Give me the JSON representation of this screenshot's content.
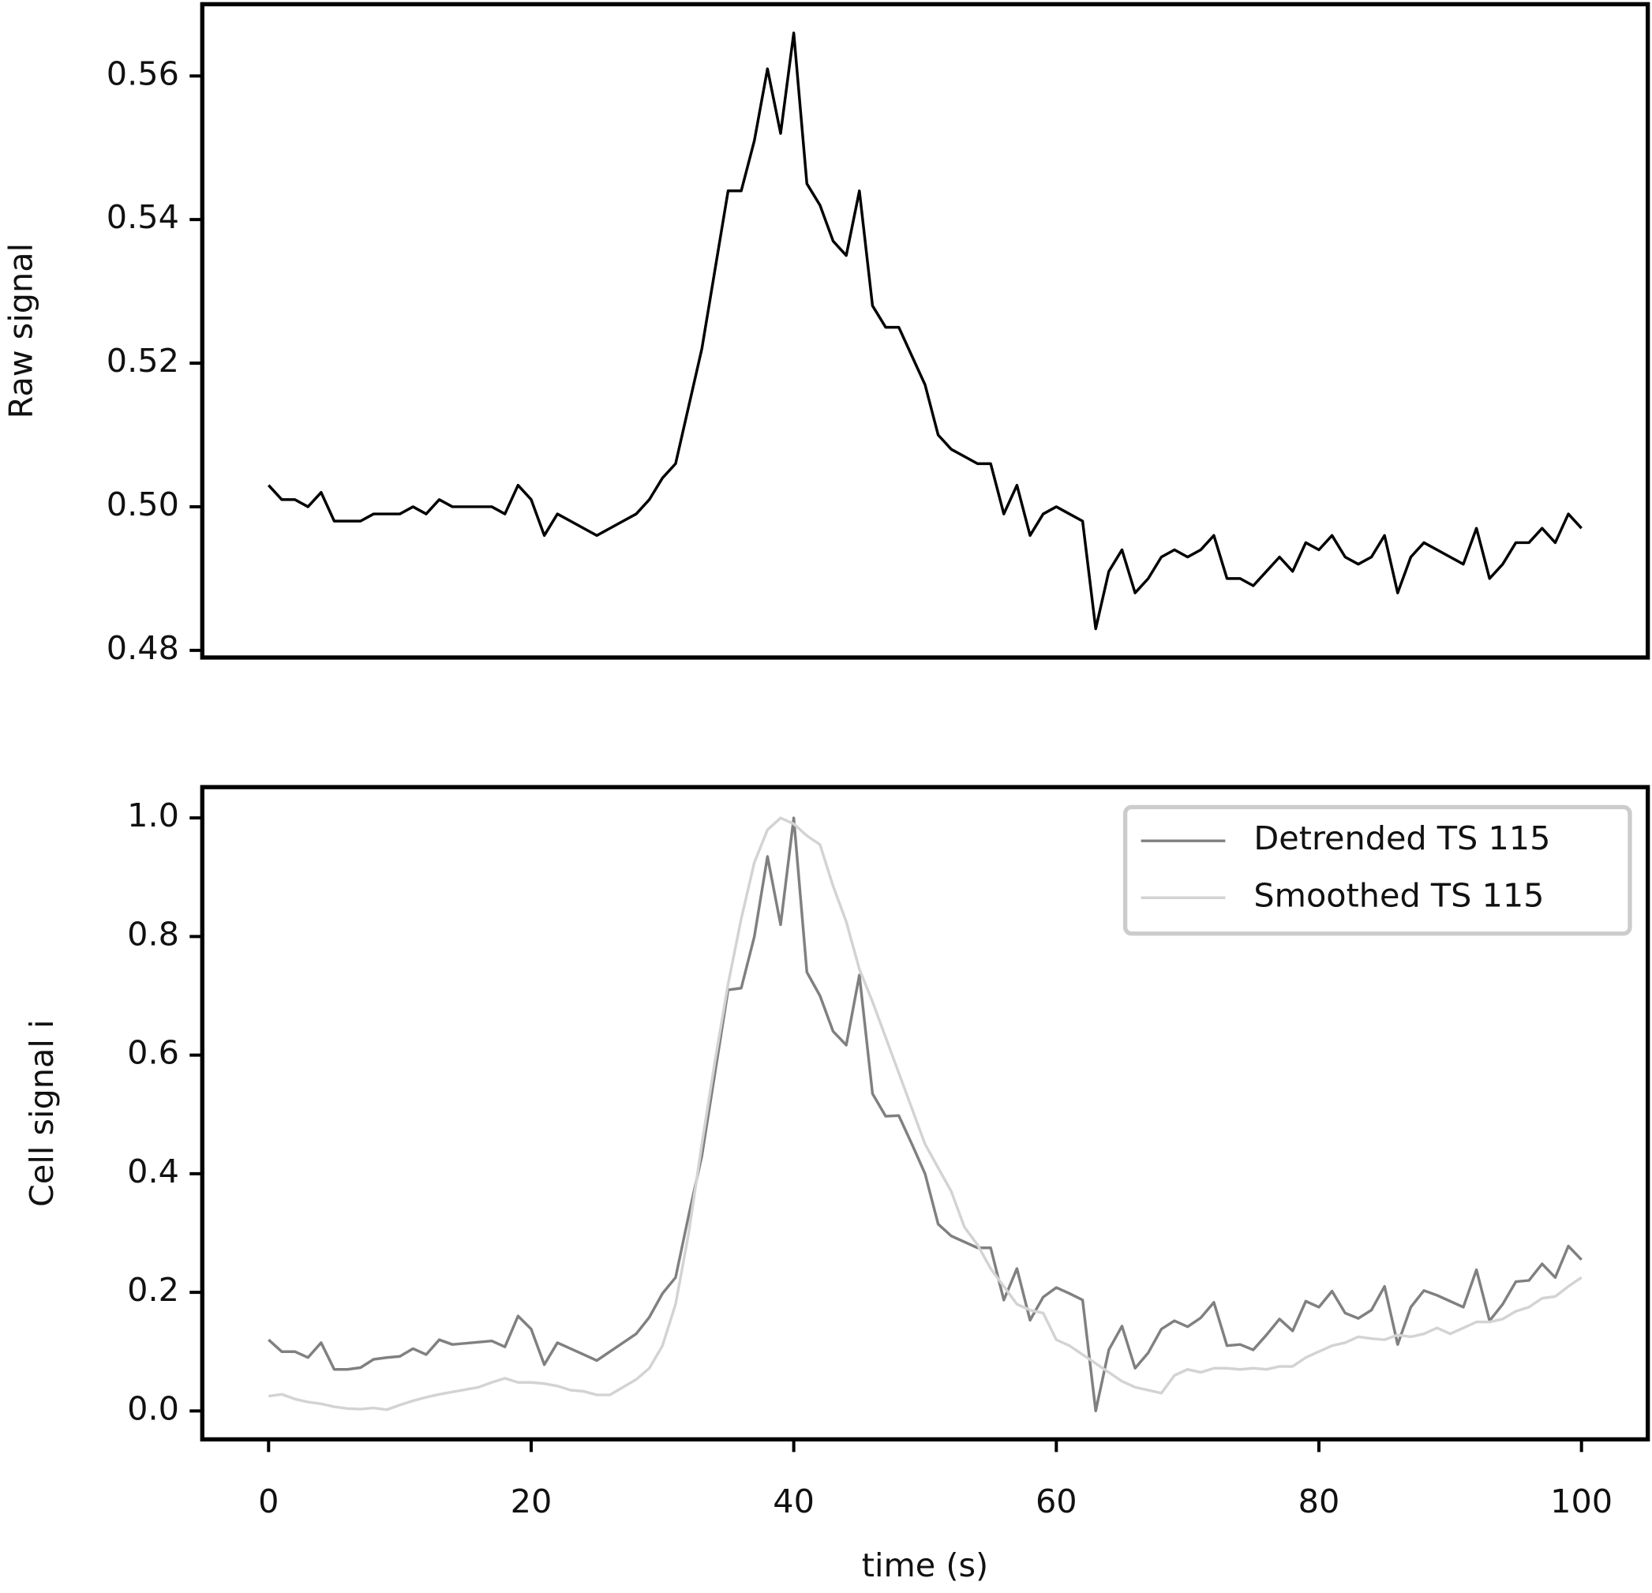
{
  "chart_data": [
    {
      "type": "line",
      "ylabel": "Raw signal",
      "color": "#000000",
      "x": [
        0,
        1,
        2,
        3,
        4,
        5,
        6,
        7,
        8,
        9,
        10,
        11,
        12,
        13,
        14,
        15,
        16,
        17,
        18,
        19,
        20,
        21,
        22,
        23,
        24,
        25,
        26,
        27,
        28,
        29,
        30,
        31,
        32,
        33,
        34,
        35,
        36,
        37,
        38,
        39,
        40,
        41,
        42,
        43,
        44,
        45,
        46,
        47,
        48,
        49,
        50,
        51,
        52,
        53,
        54,
        55,
        56,
        57,
        58,
        59,
        60,
        61,
        62,
        63,
        64,
        65,
        66,
        67,
        68,
        69,
        70,
        71,
        72,
        73,
        74,
        75,
        76,
        77,
        78,
        79,
        80,
        81,
        82,
        83,
        84,
        85,
        86,
        87,
        88,
        89,
        90,
        91,
        92,
        93,
        94,
        95,
        96,
        97,
        98,
        99,
        100
      ],
      "values": [
        0.503,
        0.501,
        0.501,
        0.5,
        0.502,
        0.498,
        0.498,
        0.498,
        0.499,
        0.499,
        0.499,
        0.5,
        0.499,
        0.501,
        0.5,
        0.5,
        0.5,
        0.5,
        0.499,
        0.503,
        0.501,
        0.496,
        0.499,
        0.498,
        0.497,
        0.496,
        0.497,
        0.498,
        0.499,
        0.501,
        0.504,
        0.506,
        0.514,
        0.522,
        0.533,
        0.544,
        0.544,
        0.551,
        0.561,
        0.552,
        0.566,
        0.545,
        0.542,
        0.537,
        0.535,
        0.544,
        0.528,
        0.525,
        0.525,
        0.521,
        0.517,
        0.51,
        0.508,
        0.507,
        0.506,
        0.506,
        0.499,
        0.503,
        0.496,
        0.499,
        0.5,
        0.499,
        0.498,
        0.483,
        0.491,
        0.494,
        0.488,
        0.49,
        0.493,
        0.494,
        0.493,
        0.494,
        0.496,
        0.49,
        0.49,
        0.489,
        0.491,
        0.493,
        0.491,
        0.495,
        0.494,
        0.496,
        0.493,
        0.492,
        0.493,
        0.496,
        0.488,
        0.493,
        0.495,
        0.494,
        0.493,
        0.492,
        0.497,
        0.49,
        0.492,
        0.495,
        0.495,
        0.497,
        0.495,
        0.499,
        0.497
      ],
      "xlim": [
        -5.05,
        105.05
      ],
      "ylim": [
        0.479,
        0.57
      ],
      "yticks": [
        {
          "value": 0.48,
          "label": "0.48"
        },
        {
          "value": 0.5,
          "label": "0.50"
        },
        {
          "value": 0.52,
          "label": "0.52"
        },
        {
          "value": 0.54,
          "label": "0.54"
        },
        {
          "value": 0.56,
          "label": "0.56"
        }
      ]
    },
    {
      "type": "line",
      "ylabel": "Cell signal i",
      "xlabel": "time (s)",
      "legend": "upper right",
      "x": [
        0,
        1,
        2,
        3,
        4,
        5,
        6,
        7,
        8,
        9,
        10,
        11,
        12,
        13,
        14,
        15,
        16,
        17,
        18,
        19,
        20,
        21,
        22,
        23,
        24,
        25,
        26,
        27,
        28,
        29,
        30,
        31,
        32,
        33,
        34,
        35,
        36,
        37,
        38,
        39,
        40,
        41,
        42,
        43,
        44,
        45,
        46,
        47,
        48,
        49,
        50,
        51,
        52,
        53,
        54,
        55,
        56,
        57,
        58,
        59,
        60,
        61,
        62,
        63,
        64,
        65,
        66,
        67,
        68,
        69,
        70,
        71,
        72,
        73,
        74,
        75,
        76,
        77,
        78,
        79,
        80,
        81,
        82,
        83,
        84,
        85,
        86,
        87,
        88,
        89,
        90,
        91,
        92,
        93,
        94,
        95,
        96,
        97,
        98,
        99,
        100
      ],
      "series": [
        {
          "name": "Detrended TS 115",
          "color": "#808080",
          "values": [
            0.12,
            0.1,
            0.1,
            0.09,
            0.115,
            0.07,
            0.07,
            0.073,
            0.087,
            0.09,
            0.092,
            0.105,
            0.095,
            0.12,
            0.112,
            0.114,
            0.116,
            0.118,
            0.108,
            0.16,
            0.138,
            0.078,
            0.115,
            0.105,
            0.095,
            0.085,
            0.1,
            0.115,
            0.13,
            0.158,
            0.198,
            0.225,
            0.33,
            0.43,
            0.57,
            0.71,
            0.713,
            0.8,
            0.935,
            0.82,
            1.0,
            0.74,
            0.7,
            0.64,
            0.617,
            0.735,
            0.535,
            0.497,
            0.498,
            0.45,
            0.4,
            0.315,
            0.295,
            0.285,
            0.275,
            0.275,
            0.187,
            0.24,
            0.153,
            0.192,
            0.208,
            0.198,
            0.187,
            0.0,
            0.103,
            0.143,
            0.072,
            0.098,
            0.138,
            0.152,
            0.142,
            0.157,
            0.183,
            0.11,
            0.112,
            0.103,
            0.128,
            0.155,
            0.135,
            0.185,
            0.175,
            0.202,
            0.165,
            0.156,
            0.17,
            0.21,
            0.112,
            0.175,
            0.203,
            0.195,
            0.185,
            0.175,
            0.238,
            0.152,
            0.18,
            0.218,
            0.22,
            0.248,
            0.225,
            0.278,
            0.255
          ]
        },
        {
          "name": "Smoothed TS 115",
          "color": "#d3d3d3",
          "values": [
            0.025,
            0.028,
            0.02,
            0.015,
            0.012,
            0.007,
            0.004,
            0.003,
            0.005,
            0.002,
            0.01,
            0.017,
            0.023,
            0.028,
            0.032,
            0.036,
            0.04,
            0.048,
            0.055,
            0.048,
            0.048,
            0.046,
            0.042,
            0.035,
            0.033,
            0.027,
            0.027,
            0.04,
            0.053,
            0.072,
            0.11,
            0.18,
            0.3,
            0.45,
            0.59,
            0.72,
            0.83,
            0.925,
            0.98,
            1.0,
            0.99,
            0.97,
            0.955,
            0.885,
            0.825,
            0.745,
            0.69,
            0.63,
            0.57,
            0.51,
            0.45,
            0.41,
            0.37,
            0.31,
            0.28,
            0.24,
            0.21,
            0.18,
            0.17,
            0.165,
            0.12,
            0.11,
            0.095,
            0.08,
            0.065,
            0.05,
            0.04,
            0.035,
            0.03,
            0.06,
            0.07,
            0.065,
            0.072,
            0.072,
            0.07,
            0.072,
            0.07,
            0.075,
            0.075,
            0.09,
            0.1,
            0.11,
            0.115,
            0.125,
            0.122,
            0.12,
            0.128,
            0.125,
            0.13,
            0.14,
            0.13,
            0.14,
            0.15,
            0.15,
            0.155,
            0.168,
            0.175,
            0.19,
            0.193,
            0.21,
            0.225
          ]
        }
      ],
      "xlim": [
        -5.05,
        105.05
      ],
      "xticks": [
        0,
        20,
        40,
        60,
        80,
        100
      ],
      "ylim": [
        -0.048,
        1.052
      ],
      "yticks": [
        {
          "value": 0,
          "label": "0.0"
        },
        {
          "value": 0.2,
          "label": "0.2"
        },
        {
          "value": 0.4,
          "label": "0.4"
        },
        {
          "value": 0.6,
          "label": "0.6"
        },
        {
          "value": 0.8,
          "label": "0.8"
        },
        {
          "value": 1,
          "label": "1.0"
        }
      ]
    }
  ]
}
